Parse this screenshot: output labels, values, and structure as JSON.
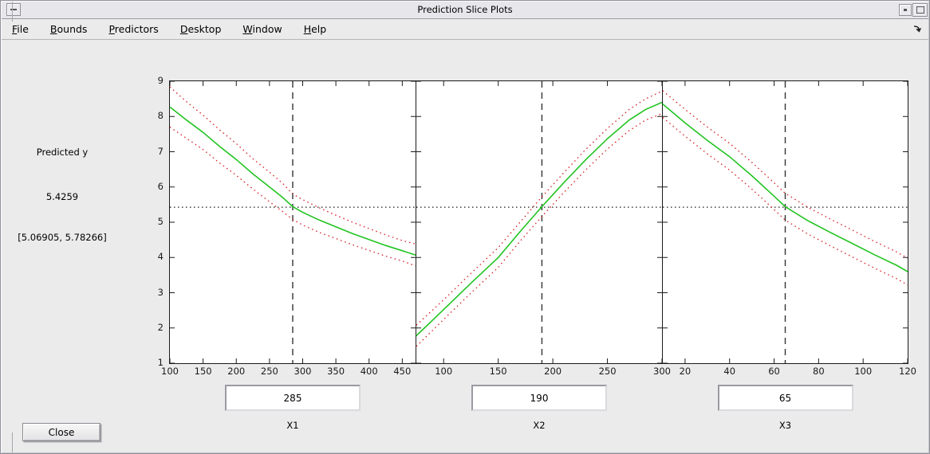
{
  "window": {
    "title": "Prediction Slice Plots"
  },
  "icons": {
    "titlebar_left": "window-menu-icon",
    "titlebar_right_1": "iconify-icon",
    "titlebar_right_2": "maximize-icon",
    "menubar_right": "dock-figure-icon"
  },
  "menu": {
    "items": [
      {
        "label": "File",
        "underline": 0
      },
      {
        "label": "Bounds",
        "underline": 0
      },
      {
        "label": "Predictors",
        "underline": 0
      },
      {
        "label": "Desktop",
        "underline": 0
      },
      {
        "label": "Window",
        "underline": 0
      },
      {
        "label": "Help",
        "underline": 0
      }
    ]
  },
  "result_panel": {
    "title": "Predicted y",
    "value": "5.4259",
    "interval": "[5.06905, 5.78266]"
  },
  "controls": {
    "close_label": "Close"
  },
  "predictors": [
    {
      "label": "X1",
      "value": "285"
    },
    {
      "label": "X2",
      "value": "190"
    },
    {
      "label": "X3",
      "value": "65"
    }
  ],
  "colors": {
    "fit": "#22c422",
    "bounds": "#d82830",
    "reference": "#1a1a1a",
    "dashed": "#333333"
  },
  "chart_data": [
    {
      "type": "line",
      "xlabel": "X1",
      "xlim": [
        100,
        470
      ],
      "xticks": [
        100,
        150,
        200,
        250,
        300,
        350,
        400,
        450
      ],
      "ylim": [
        1,
        9
      ],
      "yticks": [
        1,
        2,
        3,
        4,
        5,
        6,
        7,
        8,
        9
      ],
      "current_x": 285,
      "predicted_y": 5.4259,
      "series": [
        {
          "name": "fit",
          "points": [
            [
              100,
              8.27
            ],
            [
              125,
              7.9
            ],
            [
              150,
              7.55
            ],
            [
              175,
              7.15
            ],
            [
              200,
              6.78
            ],
            [
              225,
              6.37
            ],
            [
              250,
              6.0
            ],
            [
              270,
              5.7
            ],
            [
              285,
              5.44
            ],
            [
              300,
              5.28
            ],
            [
              325,
              5.06
            ],
            [
              350,
              4.87
            ],
            [
              375,
              4.68
            ],
            [
              400,
              4.51
            ],
            [
              425,
              4.34
            ],
            [
              450,
              4.19
            ],
            [
              470,
              4.07
            ]
          ]
        },
        {
          "name": "upper-bound",
          "points": [
            [
              100,
              8.84
            ],
            [
              125,
              8.42
            ],
            [
              150,
              8.04
            ],
            [
              175,
              7.62
            ],
            [
              200,
              7.23
            ],
            [
              225,
              6.8
            ],
            [
              250,
              6.42
            ],
            [
              270,
              6.1
            ],
            [
              285,
              5.8
            ],
            [
              300,
              5.64
            ],
            [
              325,
              5.41
            ],
            [
              350,
              5.2
            ],
            [
              375,
              5.0
            ],
            [
              400,
              4.82
            ],
            [
              425,
              4.64
            ],
            [
              450,
              4.48
            ],
            [
              470,
              4.38
            ]
          ]
        },
        {
          "name": "lower-bound",
          "points": [
            [
              100,
              7.7
            ],
            [
              125,
              7.38
            ],
            [
              150,
              7.06
            ],
            [
              175,
              6.68
            ],
            [
              200,
              6.33
            ],
            [
              225,
              5.94
            ],
            [
              250,
              5.58
            ],
            [
              270,
              5.3
            ],
            [
              285,
              5.08
            ],
            [
              300,
              4.92
            ],
            [
              325,
              4.71
            ],
            [
              350,
              4.54
            ],
            [
              375,
              4.36
            ],
            [
              400,
              4.2
            ],
            [
              425,
              4.04
            ],
            [
              450,
              3.9
            ],
            [
              470,
              3.76
            ]
          ]
        }
      ]
    },
    {
      "type": "line",
      "xlabel": "X2",
      "xlim": [
        75,
        300
      ],
      "xticks": [
        100,
        150,
        200,
        250,
        300
      ],
      "ylim": [
        1,
        9
      ],
      "yticks": [
        1,
        2,
        3,
        4,
        5,
        6,
        7,
        8,
        9
      ],
      "current_x": 190,
      "predicted_y": 5.4259,
      "series": [
        {
          "name": "fit",
          "points": [
            [
              75,
              1.78
            ],
            [
              100,
              2.52
            ],
            [
              125,
              3.27
            ],
            [
              150,
              4.0
            ],
            [
              170,
              4.73
            ],
            [
              190,
              5.44
            ],
            [
              210,
              6.12
            ],
            [
              230,
              6.77
            ],
            [
              250,
              7.37
            ],
            [
              270,
              7.9
            ],
            [
              285,
              8.2
            ],
            [
              300,
              8.4
            ]
          ]
        },
        {
          "name": "upper-bound",
          "points": [
            [
              75,
              2.08
            ],
            [
              100,
              2.8
            ],
            [
              125,
              3.55
            ],
            [
              150,
              4.28
            ],
            [
              170,
              5.0
            ],
            [
              190,
              5.72
            ],
            [
              210,
              6.4
            ],
            [
              230,
              7.06
            ],
            [
              250,
              7.66
            ],
            [
              270,
              8.2
            ],
            [
              285,
              8.5
            ],
            [
              300,
              8.72
            ]
          ]
        },
        {
          "name": "lower-bound",
          "points": [
            [
              75,
              1.48
            ],
            [
              100,
              2.24
            ],
            [
              125,
              2.99
            ],
            [
              150,
              3.72
            ],
            [
              170,
              4.46
            ],
            [
              190,
              5.16
            ],
            [
              210,
              5.84
            ],
            [
              230,
              6.48
            ],
            [
              250,
              7.08
            ],
            [
              270,
              7.6
            ],
            [
              285,
              7.9
            ],
            [
              300,
              8.08
            ]
          ]
        }
      ]
    },
    {
      "type": "line",
      "xlabel": "X3",
      "xlim": [
        10,
        120
      ],
      "xticks": [
        20,
        40,
        60,
        80,
        100,
        120
      ],
      "ylim": [
        1,
        9
      ],
      "yticks": [
        1,
        2,
        3,
        4,
        5,
        6,
        7,
        8,
        9
      ],
      "current_x": 65,
      "predicted_y": 5.4259,
      "series": [
        {
          "name": "fit",
          "points": [
            [
              10,
              8.35
            ],
            [
              20,
              7.82
            ],
            [
              30,
              7.32
            ],
            [
              40,
              6.86
            ],
            [
              50,
              6.32
            ],
            [
              60,
              5.74
            ],
            [
              65,
              5.44
            ],
            [
              75,
              5.05
            ],
            [
              85,
              4.72
            ],
            [
              95,
              4.4
            ],
            [
              105,
              4.08
            ],
            [
              115,
              3.78
            ],
            [
              120,
              3.6
            ]
          ]
        },
        {
          "name": "upper-bound",
          "points": [
            [
              10,
              8.73
            ],
            [
              20,
              8.2
            ],
            [
              30,
              7.7
            ],
            [
              40,
              7.24
            ],
            [
              50,
              6.7
            ],
            [
              60,
              6.12
            ],
            [
              65,
              5.82
            ],
            [
              75,
              5.43
            ],
            [
              85,
              5.1
            ],
            [
              95,
              4.78
            ],
            [
              105,
              4.46
            ],
            [
              115,
              4.16
            ],
            [
              120,
              3.98
            ]
          ]
        },
        {
          "name": "lower-bound",
          "points": [
            [
              10,
              7.97
            ],
            [
              20,
              7.44
            ],
            [
              30,
              6.94
            ],
            [
              40,
              6.48
            ],
            [
              50,
              5.94
            ],
            [
              60,
              5.36
            ],
            [
              65,
              5.06
            ],
            [
              75,
              4.67
            ],
            [
              85,
              4.34
            ],
            [
              95,
              4.02
            ],
            [
              105,
              3.7
            ],
            [
              115,
              3.4
            ],
            [
              120,
              3.22
            ]
          ]
        }
      ]
    }
  ]
}
